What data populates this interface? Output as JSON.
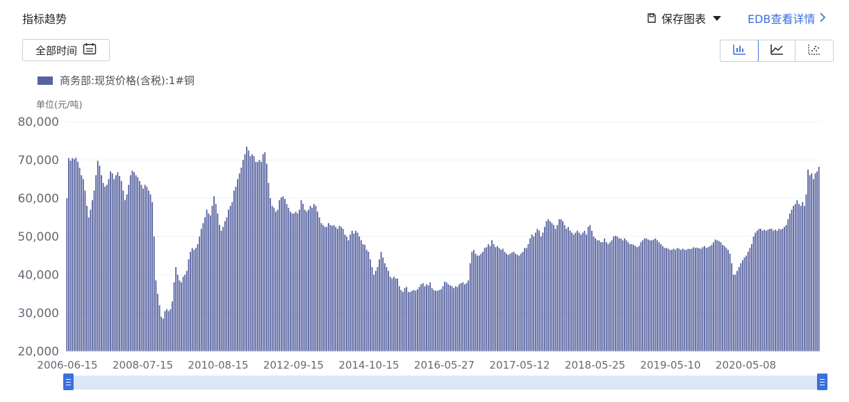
{
  "header": {
    "title": "指标趋势",
    "save_label": "保存图表",
    "edb_label": "EDB查看详情"
  },
  "toolbar": {
    "time_range_label": "全部时间",
    "chart_types": [
      {
        "name": "bar-chart-icon",
        "active": true
      },
      {
        "name": "line-chart-icon",
        "active": false
      },
      {
        "name": "scatter-chart-icon",
        "active": false
      }
    ]
  },
  "colors": {
    "accent": "#3a6fde",
    "bar": "#5763a0",
    "slider_track": "#dbe6f7"
  },
  "chart_data": {
    "type": "bar",
    "ylabel": "单位(元/吨)",
    "ylim": [
      20000,
      80000
    ],
    "y_ticks": [
      "20,000",
      "30,000",
      "40,000",
      "50,000",
      "60,000",
      "70,000",
      "80,000"
    ],
    "x_tick_labels": [
      "2006-06-15",
      "2008-07-15",
      "2010-08-15",
      "2012-09-15",
      "2014-10-15",
      "2016-05-27",
      "2017-05-12",
      "2018-05-25",
      "2019-05-10",
      "2020-05-08"
    ],
    "grid": true,
    "legend_position": "top-left",
    "series": [
      {
        "name": "商务部:现货价格(含税):1#铜",
        "values": [
          60000,
          70500,
          69800,
          70500,
          70200,
          70600,
          69500,
          68000,
          66000,
          65000,
          62000,
          58000,
          55000,
          57000,
          59500,
          62000,
          66000,
          69800,
          68500,
          66000,
          64000,
          63000,
          63500,
          65000,
          67000,
          66500,
          65000,
          66000,
          66800,
          65800,
          64500,
          62000,
          59500,
          61000,
          63500,
          66000,
          67200,
          66800,
          66000,
          65500,
          64500,
          63500,
          62500,
          63500,
          63000,
          62000,
          61000,
          59000,
          50000,
          38500,
          35000,
          32000,
          29000,
          28500,
          30500,
          31000,
          30500,
          31000,
          33000,
          38000,
          42000,
          40000,
          38500,
          38000,
          39500,
          40000,
          41000,
          44000,
          46000,
          47000,
          46500,
          47000,
          48000,
          50000,
          52000,
          53500,
          55000,
          57000,
          56000,
          55500,
          58000,
          60500,
          58500,
          56000,
          53000,
          51500,
          52500,
          54000,
          55000,
          57000,
          58000,
          59000,
          62000,
          63000,
          65000,
          66500,
          68000,
          70000,
          71500,
          73500,
          72500,
          71000,
          71500,
          71000,
          69500,
          69500,
          70000,
          69500,
          71500,
          72000,
          69000,
          64000,
          60000,
          58000,
          57500,
          56500,
          57000,
          59500,
          60200,
          60500,
          59800,
          58500,
          57500,
          56500,
          56000,
          56000,
          56500,
          56000,
          57000,
          59500,
          58500,
          57000,
          56500,
          57000,
          58000,
          57500,
          58500,
          58000,
          56500,
          55000,
          53500,
          53000,
          52500,
          52500,
          53500,
          53000,
          52800,
          53000,
          52500,
          52000,
          52800,
          52500,
          52000,
          50500,
          50000,
          49000,
          50500,
          51500,
          50800,
          51500,
          51000,
          50000,
          49000,
          48000,
          47800,
          46500,
          46000,
          44000,
          42000,
          40000,
          41000,
          42000,
          44000,
          46000,
          44500,
          43000,
          42000,
          41000,
          39500,
          39000,
          39500,
          39000,
          39000,
          37000,
          36000,
          35500,
          36500,
          36800,
          35500,
          35500,
          35800,
          36000,
          35800,
          36200,
          36800,
          37500,
          37800,
          37000,
          37500,
          37200,
          38000,
          36500,
          36000,
          35800,
          35800,
          36000,
          36200,
          37000,
          38200,
          38000,
          37500,
          37200,
          37000,
          36500,
          37000,
          36800,
          37500,
          37800,
          38000,
          37500,
          37800,
          38500,
          43000,
          46000,
          46500,
          45500,
          45000,
          45000,
          45500,
          46000,
          47000,
          47200,
          48000,
          47500,
          49000,
          48000,
          47200,
          47500,
          47000,
          46500,
          46800,
          46000,
          45500,
          45200,
          45500,
          45800,
          46000,
          45500,
          45200,
          45000,
          45500,
          46000,
          47000,
          47000,
          48000,
          49500,
          50500,
          50000,
          51000,
          52000,
          51500,
          50000,
          51000,
          52500,
          54000,
          54500,
          54000,
          53500,
          53000,
          52000,
          53000,
          54500,
          54500,
          54000,
          53000,
          52000,
          52500,
          51500,
          51000,
          50500,
          51000,
          51500,
          51000,
          50500,
          51000,
          51500,
          50500,
          52500,
          53000,
          51500,
          50000,
          49500,
          49000,
          49000,
          48500,
          48500,
          49500,
          48500,
          48000,
          48500,
          49000,
          50000,
          50200,
          50000,
          49500,
          49500,
          49000,
          49500,
          49000,
          48500,
          48000,
          48000,
          47800,
          47500,
          47200,
          47500,
          48500,
          49000,
          49500,
          49500,
          49200,
          49000,
          49000,
          49200,
          49500,
          49000,
          48500,
          48000,
          47500,
          47000,
          47000,
          46800,
          46500,
          46500,
          46800,
          46500,
          47000,
          46800,
          46500,
          46800,
          46600,
          46500,
          46800,
          46700,
          46800,
          47200,
          47000,
          47100,
          46900,
          46800,
          47200,
          47500,
          47000,
          47200,
          47500,
          47800,
          48500,
          49200,
          49000,
          48800,
          48500,
          47800,
          47500,
          47000,
          46500,
          45500,
          43000,
          40000,
          40000,
          41000,
          42000,
          43000,
          43800,
          44500,
          45000,
          46000,
          47000,
          48000,
          50000,
          51000,
          51500,
          52000,
          52000,
          51500,
          51800,
          51500,
          51800,
          52000,
          52000,
          51500,
          51800,
          51500,
          52000,
          51800,
          52000,
          52500,
          53000,
          54500,
          56000,
          57000,
          58000,
          58500,
          59500,
          58500,
          58000,
          59000,
          58000,
          61000,
          67500,
          66000,
          66500,
          65000,
          66500,
          67000,
          68200
        ]
      }
    ]
  }
}
